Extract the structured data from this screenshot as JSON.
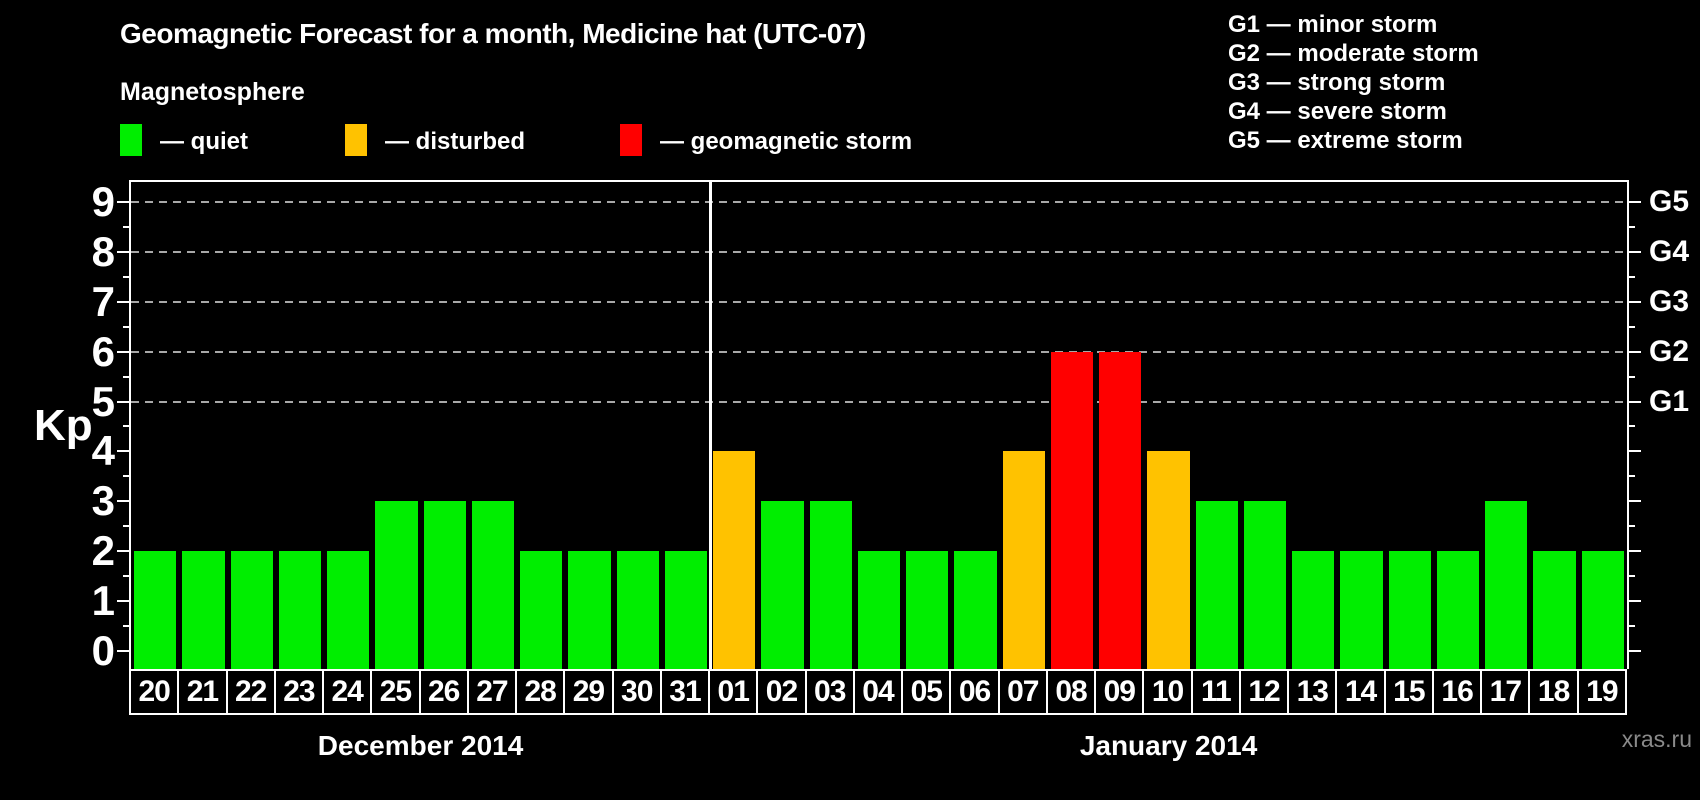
{
  "title": "Geomagnetic Forecast for a month, Medicine hat (UTC-07)",
  "watermark": "xras.ru",
  "legend": {
    "heading": "Magnetosphere",
    "items": [
      {
        "label": "— quiet",
        "status": "quiet",
        "color": "#00ee00"
      },
      {
        "label": "— disturbed",
        "status": "disturbed",
        "color": "#ffc200"
      },
      {
        "label": "— geomagnetic storm",
        "status": "storm",
        "color": "#ff0000"
      }
    ]
  },
  "storm_scale_legend": [
    "G1 — minor storm",
    "G2 — moderate storm",
    "G3 — strong storm",
    "G4 — severe storm",
    "G5 — extreme storm"
  ],
  "chart_data": {
    "type": "bar",
    "title": "Geomagnetic Forecast for a month, Medicine hat (UTC-07)",
    "ylabel": "Kp",
    "y_ticks": [
      0,
      1,
      2,
      3,
      4,
      5,
      6,
      7,
      8,
      9
    ],
    "ylim": [
      -0.36,
      9.4
    ],
    "grid": "dashed horizontal lines at Kp 5-9 only",
    "gridlines_kp": [
      5,
      6,
      7,
      8,
      9
    ],
    "right_axis": [
      {
        "kp": 5,
        "label": "G1"
      },
      {
        "kp": 6,
        "label": "G2"
      },
      {
        "kp": 7,
        "label": "G3"
      },
      {
        "kp": 8,
        "label": "G4"
      },
      {
        "kp": 9,
        "label": "G5"
      }
    ],
    "months": [
      {
        "label": "December 2014",
        "start_index": 0,
        "days": 12
      },
      {
        "label": "January 2014",
        "start_index": 12,
        "days": 19
      }
    ],
    "categories": [
      "20",
      "21",
      "22",
      "23",
      "24",
      "25",
      "26",
      "27",
      "28",
      "29",
      "30",
      "31",
      "01",
      "02",
      "03",
      "04",
      "05",
      "06",
      "07",
      "08",
      "09",
      "10",
      "11",
      "12",
      "13",
      "14",
      "15",
      "16",
      "17",
      "18",
      "19"
    ],
    "values": [
      2,
      2,
      2,
      2,
      2,
      3,
      3,
      3,
      2,
      2,
      2,
      2,
      4,
      3,
      3,
      2,
      2,
      2,
      4,
      6,
      6,
      4,
      3,
      3,
      2,
      2,
      2,
      2,
      3,
      2,
      2
    ],
    "status": [
      "quiet",
      "quiet",
      "quiet",
      "quiet",
      "quiet",
      "quiet",
      "quiet",
      "quiet",
      "quiet",
      "quiet",
      "quiet",
      "quiet",
      "disturbed",
      "quiet",
      "quiet",
      "quiet",
      "quiet",
      "quiet",
      "disturbed",
      "storm",
      "storm",
      "disturbed",
      "quiet",
      "quiet",
      "quiet",
      "quiet",
      "quiet",
      "quiet",
      "quiet",
      "quiet",
      "quiet"
    ],
    "status_colors": {
      "quiet": "#00ee00",
      "disturbed": "#ffc200",
      "storm": "#ff0000"
    }
  }
}
